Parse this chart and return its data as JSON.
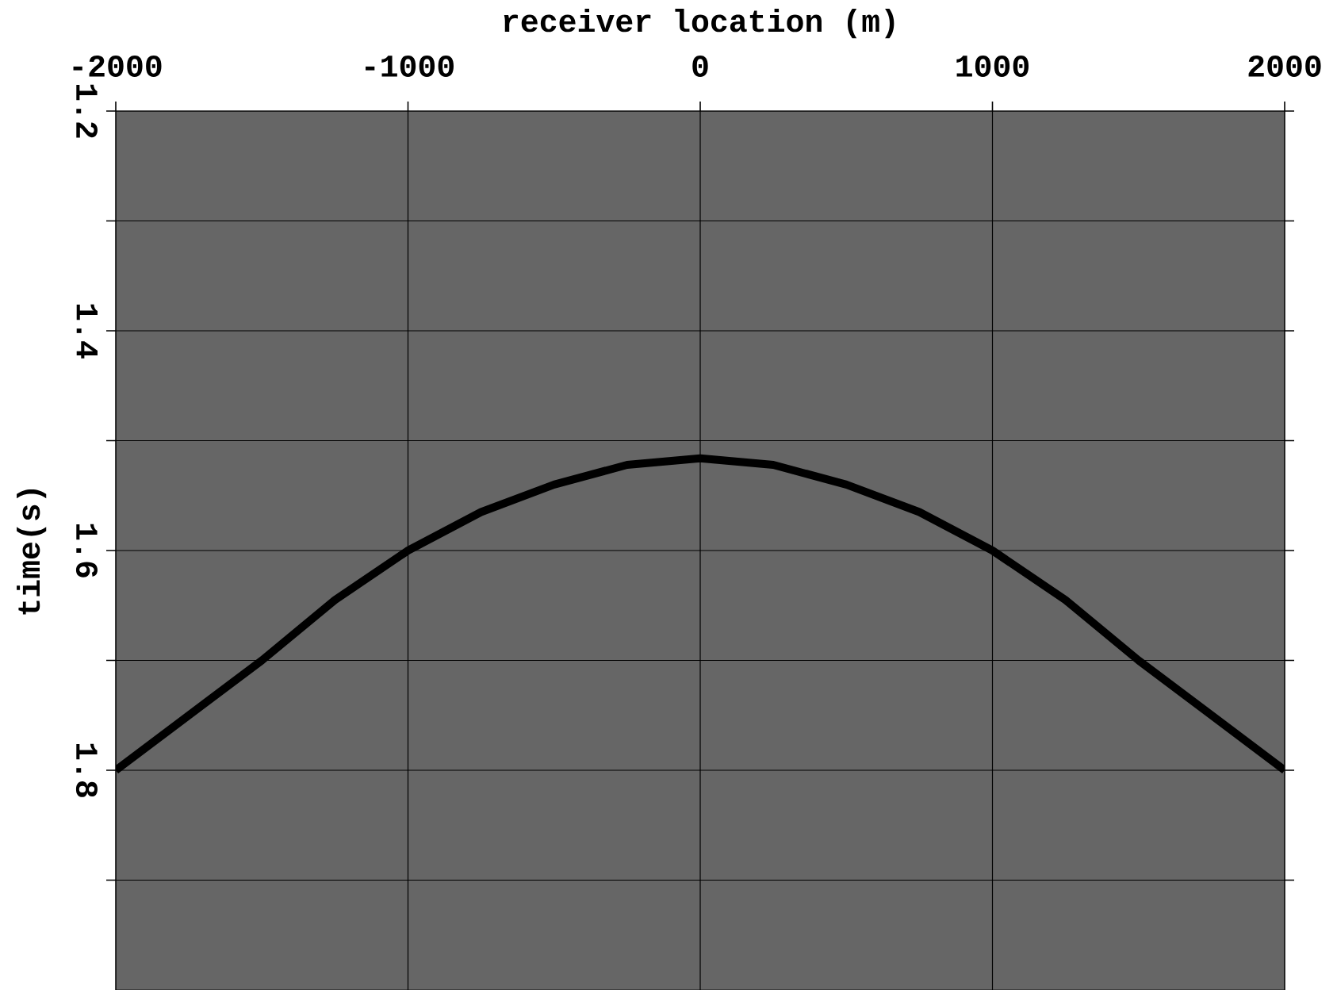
{
  "chart_data": {
    "type": "line",
    "xlabel": "receiver location (m)",
    "ylabel": "time(s)",
    "x": [
      -2000,
      -1750,
      -1500,
      -1250,
      -1000,
      -750,
      -500,
      -250,
      0,
      250,
      500,
      750,
      1000,
      1250,
      1500,
      1750,
      2000
    ],
    "series": [
      {
        "color": "#000000",
        "values": [
          1.8,
          1.75,
          1.7,
          1.645,
          1.6,
          1.565,
          1.54,
          1.522,
          1.516,
          1.522,
          1.54,
          1.565,
          1.6,
          1.645,
          1.7,
          1.75,
          1.8
        ]
      }
    ],
    "xlim": [
      -2000,
      2000
    ],
    "xticks": [
      -2000,
      -1000,
      0,
      1000,
      2000
    ],
    "ylim": [
      2.0,
      1.2
    ],
    "yticks": [
      1.2,
      {
        "value": 1.3,
        "label": null
      },
      1.4,
      {
        "value": 1.5,
        "label": null
      },
      1.6,
      {
        "value": 1.7,
        "label": null
      },
      1.8,
      {
        "value": 1.9,
        "label": null
      }
    ],
    "grid": true
  }
}
